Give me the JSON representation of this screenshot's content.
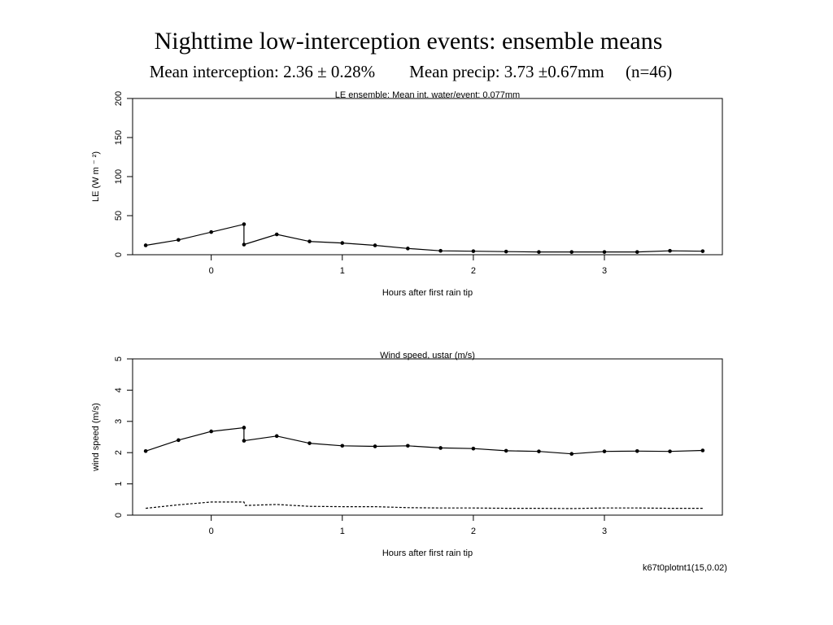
{
  "slide": {
    "title": "Nighttime low-interception events: ensemble means",
    "subtitle_parts": [
      "Mean interception: 2.36 ± 0.28%",
      "Mean precip: 3.73 ±0.67mm",
      "(n=46)"
    ],
    "footer_code": "k67t0plotnt1(15,0.02)"
  },
  "chart_data": [
    {
      "type": "line",
      "title": "LE ensemble: Mean int. water/event: 0.077mm",
      "xlabel": "Hours after first rain tip",
      "ylabel": "LE (W m ⁻ ²)",
      "xlim": [
        -0.6,
        3.9
      ],
      "ylim": [
        0,
        200
      ],
      "xticks": [
        0,
        1,
        2,
        3
      ],
      "xtick_labels": [
        "0",
        "1",
        "2",
        "3"
      ],
      "yticks": [
        0,
        50,
        100,
        150,
        200
      ],
      "ytick_labels": [
        "0",
        "50",
        "100",
        "150",
        "200"
      ],
      "series": [
        {
          "style": "solid-with-points",
          "color": "#000000",
          "x": [
            -0.5,
            -0.25,
            0,
            0.25,
            0.25,
            0.5,
            0.75,
            1,
            1.25,
            1.5,
            1.75,
            2,
            2.25,
            2.5,
            2.75,
            3,
            3.25,
            3.5,
            3.75
          ],
          "y": [
            12,
            19,
            29,
            39,
            13,
            26,
            17,
            15,
            12,
            8,
            5,
            4.5,
            4,
            3.5,
            3.5,
            3.5,
            3.5,
            5,
            4.5
          ]
        }
      ]
    },
    {
      "type": "line",
      "title": "Wind speed, ustar (m/s)",
      "xlabel": "Hours after first rain tip",
      "ylabel": "wind speed (m/s)",
      "xlim": [
        -0.6,
        3.9
      ],
      "ylim": [
        0,
        5
      ],
      "xticks": [
        0,
        1,
        2,
        3
      ],
      "xtick_labels": [
        "0",
        "1",
        "2",
        "3"
      ],
      "yticks": [
        0,
        1,
        2,
        3,
        4,
        5
      ],
      "ytick_labels": [
        "0",
        "1",
        "2",
        "3",
        "4",
        "5"
      ],
      "series": [
        {
          "style": "solid-with-points",
          "color": "#000000",
          "x": [
            -0.5,
            -0.25,
            0,
            0.25,
            0.25,
            0.5,
            0.75,
            1,
            1.25,
            1.5,
            1.75,
            2,
            2.25,
            2.5,
            2.75,
            3,
            3.25,
            3.5,
            3.75
          ],
          "y": [
            2.05,
            2.4,
            2.68,
            2.8,
            2.38,
            2.53,
            2.3,
            2.22,
            2.2,
            2.22,
            2.15,
            2.13,
            2.06,
            2.04,
            1.96,
            2.04,
            2.05,
            2.04,
            2.07
          ]
        },
        {
          "style": "dashed",
          "color": "#000000",
          "x": [
            -0.5,
            -0.25,
            0,
            0.25,
            0.26,
            0.5,
            0.75,
            1,
            1.25,
            1.5,
            1.75,
            2,
            2.25,
            2.5,
            2.75,
            3,
            3.25,
            3.5,
            3.75
          ],
          "y": [
            0.22,
            0.33,
            0.42,
            0.42,
            0.31,
            0.34,
            0.28,
            0.27,
            0.27,
            0.24,
            0.23,
            0.23,
            0.22,
            0.22,
            0.21,
            0.23,
            0.23,
            0.22,
            0.22
          ]
        }
      ]
    }
  ]
}
